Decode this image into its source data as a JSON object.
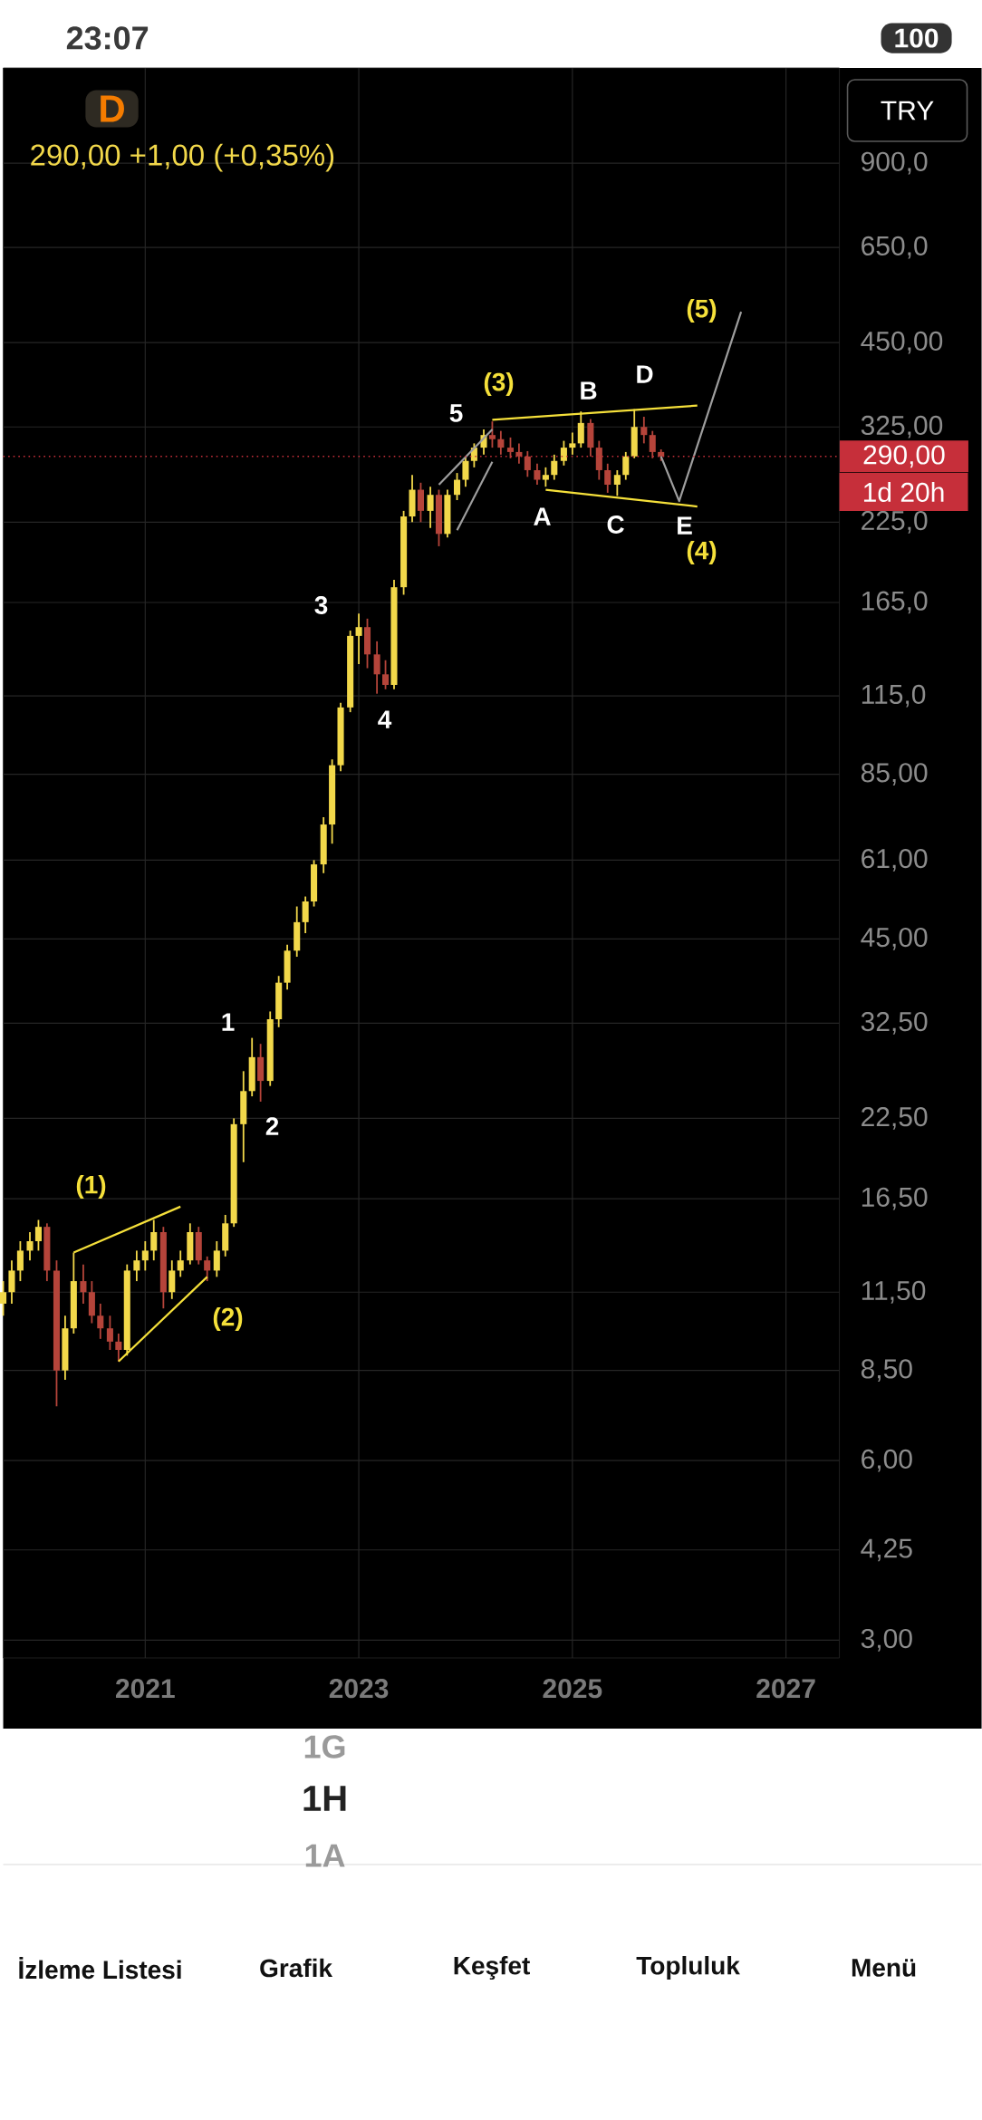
{
  "chart_data": {
    "type": "candlestick",
    "xlim": [
      "2019-09",
      "2027-07"
    ],
    "ylim": [
      2.8,
      1300
    ],
    "log": "y",
    "grid": true,
    "xticks": [
      "2021",
      "2023",
      "2025",
      "2027"
    ],
    "yticks": [
      {
        "value": 3,
        "label": "3,00"
      },
      {
        "value": 4.25,
        "label": "4,25"
      },
      {
        "value": 6,
        "label": "6,00"
      },
      {
        "value": 8.5,
        "label": "8,50"
      },
      {
        "value": 11.5,
        "label": "11,50"
      },
      {
        "value": 16.5,
        "label": "16,50"
      },
      {
        "value": 22.5,
        "label": "22,50"
      },
      {
        "value": 32.5,
        "label": "32,50"
      },
      {
        "value": 45,
        "label": "45,00"
      },
      {
        "value": 61,
        "label": "61,00"
      },
      {
        "value": 85,
        "label": "85,00"
      },
      {
        "value": 115,
        "label": "115,0"
      },
      {
        "value": 165,
        "label": "165,0"
      },
      {
        "value": 225,
        "label": "225,0"
      },
      {
        "value": 325,
        "label": "325,00"
      },
      {
        "value": 450,
        "label": "450,00"
      },
      {
        "value": 650,
        "label": "650,0"
      },
      {
        "value": 900,
        "label": "900,0"
      }
    ],
    "series": [
      {
        "x": [
          "2019-09",
          "2019-10",
          "2019-11",
          "2019-12",
          "2020-01",
          "2020-02",
          "2020-03",
          "2020-04",
          "2020-05",
          "2020-06",
          "2020-07",
          "2020-08",
          "2020-09",
          "2020-10",
          "2020-11",
          "2020-12",
          "2021-01",
          "2021-02",
          "2021-03",
          "2021-04",
          "2021-05",
          "2021-06",
          "2021-07",
          "2021-08",
          "2021-09",
          "2021-10",
          "2021-11",
          "2021-12",
          "2022-01",
          "2022-02",
          "2022-03",
          "2022-04",
          "2022-05",
          "2022-06",
          "2022-07",
          "2022-08",
          "2022-09",
          "2022-10",
          "2022-11",
          "2022-12",
          "2023-01",
          "2023-02",
          "2023-03",
          "2023-04",
          "2023-05",
          "2023-06",
          "2023-07",
          "2023-08",
          "2023-09",
          "2023-10",
          "2023-11",
          "2023-12",
          "2024-01",
          "2024-02",
          "2024-03",
          "2024-04",
          "2024-05",
          "2024-06",
          "2024-07",
          "2024-08",
          "2024-09",
          "2024-10",
          "2024-11",
          "2024-12",
          "2025-01",
          "2025-02",
          "2025-03",
          "2025-04",
          "2025-05",
          "2025-06",
          "2025-07",
          "2025-08",
          "2025-09",
          "2025-10",
          "2025-11"
        ],
        "ohlc": [
          [
            11.0,
            12.0,
            10.5,
            11.5
          ],
          [
            11.5,
            13.0,
            11.0,
            12.5
          ],
          [
            12.5,
            14.0,
            12.0,
            13.5
          ],
          [
            13.5,
            14.5,
            13.0,
            14.0
          ],
          [
            14.0,
            15.2,
            13.5,
            14.8
          ],
          [
            14.8,
            15.0,
            12.0,
            12.5
          ],
          [
            12.5,
            13.0,
            7.4,
            8.5
          ],
          [
            8.5,
            10.5,
            8.2,
            10.0
          ],
          [
            10.0,
            13.4,
            9.8,
            12.0
          ],
          [
            12.0,
            12.8,
            11.0,
            11.5
          ],
          [
            11.5,
            12.0,
            10.2,
            10.5
          ],
          [
            10.5,
            11.0,
            9.6,
            10.0
          ],
          [
            10.0,
            10.5,
            9.2,
            9.5
          ],
          [
            9.5,
            9.8,
            8.8,
            9.2
          ],
          [
            9.2,
            12.8,
            9.0,
            12.5
          ],
          [
            12.5,
            13.5,
            12.0,
            13.0
          ],
          [
            13.0,
            14.0,
            12.5,
            13.5
          ],
          [
            13.5,
            15.2,
            13.0,
            14.5
          ],
          [
            14.5,
            14.8,
            10.8,
            11.5
          ],
          [
            11.5,
            13.0,
            11.2,
            12.5
          ],
          [
            12.5,
            13.5,
            12.2,
            13.0
          ],
          [
            13.0,
            15.0,
            12.8,
            14.5
          ],
          [
            14.5,
            14.8,
            12.8,
            13.0
          ],
          [
            13.0,
            13.2,
            12.0,
            12.5
          ],
          [
            12.5,
            14.0,
            12.2,
            13.5
          ],
          [
            13.5,
            15.5,
            13.2,
            15.0
          ],
          [
            15.0,
            22.5,
            14.8,
            22.0
          ],
          [
            22.0,
            27.0,
            19.0,
            25.0
          ],
          [
            25.0,
            30.7,
            24.5,
            28.5
          ],
          [
            28.5,
            30.0,
            24.0,
            26.0
          ],
          [
            26.0,
            34.0,
            25.5,
            33.0
          ],
          [
            33.0,
            39.0,
            32.0,
            38.0
          ],
          [
            38.0,
            44.0,
            37.0,
            43.0
          ],
          [
            43.0,
            51.0,
            42.0,
            48.0
          ],
          [
            48.0,
            53.0,
            46.0,
            52.0
          ],
          [
            52.0,
            61.0,
            51.0,
            60.0
          ],
          [
            60.0,
            72.0,
            58.0,
            70.0
          ],
          [
            70.0,
            90.0,
            65.0,
            88.0
          ],
          [
            88.0,
            112.0,
            86.0,
            110.0
          ],
          [
            110.0,
            148.0,
            108.0,
            145.0
          ],
          [
            145.0,
            158.0,
            130.0,
            150.0
          ],
          [
            150.0,
            155.0,
            128.0,
            135.0
          ],
          [
            135.0,
            142.0,
            116.0,
            125.0
          ],
          [
            125.0,
            132.0,
            118.0,
            120.0
          ],
          [
            120.0,
            180.0,
            118.0,
            175.0
          ],
          [
            175.0,
            235.0,
            170.0,
            230.0
          ],
          [
            230.0,
            270.0,
            225.0,
            255.0
          ],
          [
            255.0,
            262.0,
            225.0,
            235.0
          ],
          [
            235.0,
            258.0,
            220.0,
            250.0
          ],
          [
            250.0,
            255.0,
            205.0,
            215.0
          ],
          [
            215.0,
            255.0,
            212.0,
            250.0
          ],
          [
            250.0,
            272.0,
            245.0,
            265.0
          ],
          [
            265.0,
            290.0,
            258.0,
            285.0
          ],
          [
            285.0,
            305.0,
            278.0,
            300.0
          ],
          [
            300.0,
            322.0,
            292.0,
            315.0
          ],
          [
            315.0,
            332.0,
            300.0,
            310.0
          ],
          [
            310.0,
            320.0,
            292.0,
            300.0
          ],
          [
            300.0,
            312.0,
            288.0,
            295.0
          ],
          [
            295.0,
            305.0,
            282.0,
            290.0
          ],
          [
            290.0,
            296.0,
            268.0,
            275.0
          ],
          [
            275.0,
            282.0,
            260.0,
            265.0
          ],
          [
            265.0,
            278.0,
            258.0,
            270.0
          ],
          [
            270.0,
            292.0,
            265.0,
            285.0
          ],
          [
            285.0,
            308.0,
            280.0,
            300.0
          ],
          [
            300.0,
            318.0,
            292.0,
            305.0
          ],
          [
            305.0,
            345.0,
            300.0,
            330.0
          ],
          [
            330.0,
            335.0,
            290.0,
            300.0
          ],
          [
            300.0,
            308.0,
            265.0,
            275.0
          ],
          [
            275.0,
            282.0,
            252.0,
            260.0
          ],
          [
            260.0,
            275.0,
            249.0,
            270.0
          ],
          [
            270.0,
            295.0,
            265.0,
            290.0
          ],
          [
            290.0,
            348.0,
            288.0,
            325.0
          ],
          [
            325.0,
            338.0,
            305.0,
            315.0
          ],
          [
            315.0,
            320.0,
            288.0,
            295.0
          ],
          [
            295.0,
            298.0,
            285.0,
            290.0
          ]
        ],
        "colors": [
          "#f2d84a",
          "#f2d84a",
          "#f2d84a",
          "#f2d84a",
          "#f2d84a",
          "#b5443a",
          "#b5443a",
          "#f2d84a",
          "#f2d84a",
          "#b5443a",
          "#b5443a",
          "#b5443a",
          "#b5443a",
          "#b5443a",
          "#f2d84a",
          "#f2d84a",
          "#f2d84a",
          "#f2d84a",
          "#b5443a",
          "#f2d84a",
          "#f2d84a",
          "#f2d84a",
          "#b5443a",
          "#b5443a",
          "#f2d84a",
          "#f2d84a",
          "#f2d84a",
          "#f2d84a",
          "#f2d84a",
          "#b5443a",
          "#f2d84a",
          "#f2d84a",
          "#f2d84a",
          "#f2d84a",
          "#f2d84a",
          "#f2d84a",
          "#f2d84a",
          "#f2d84a",
          "#f2d84a",
          "#f2d84a",
          "#f2d84a",
          "#b5443a",
          "#b5443a",
          "#b5443a",
          "#f2d84a",
          "#f2d84a",
          "#f2d84a",
          "#b5443a",
          "#f2d84a",
          "#b5443a",
          "#f2d84a",
          "#f2d84a",
          "#f2d84a",
          "#f2d84a",
          "#f2d84a",
          "#b5443a",
          "#b5443a",
          "#b5443a",
          "#b5443a",
          "#b5443a",
          "#b5443a",
          "#f2d84a",
          "#f2d84a",
          "#f2d84a",
          "#f2d84a",
          "#f2d84a",
          "#b5443a",
          "#b5443a",
          "#b5443a",
          "#f2d84a",
          "#f2d84a",
          "#f2d84a",
          "#b5443a",
          "#b5443a",
          "#b5443a"
        ]
      },
      {
        "type": "line",
        "color": "#f5e03a",
        "x": [
          "2020-05",
          "2021-05"
        ],
        "values": [
          13.4,
          16.0
        ]
      },
      {
        "type": "line",
        "color": "#f5e03a",
        "x": [
          "2020-10",
          "2021-08"
        ],
        "values": [
          8.8,
          12.2
        ]
      },
      {
        "type": "line",
        "color": "#9e9e9e",
        "x": [
          "2023-10",
          "2024-04"
        ],
        "values": [
          260,
          322
        ]
      },
      {
        "type": "line",
        "color": "#9e9e9e",
        "x": [
          "2023-12",
          "2024-04"
        ],
        "values": [
          218,
          284
        ]
      },
      {
        "type": "line",
        "color": "#f5e03a",
        "x": [
          "2024-04",
          "2026-03"
        ],
        "values": [
          334,
          353
        ]
      },
      {
        "type": "line",
        "color": "#f5e03a",
        "x": [
          "2024-10",
          "2026-03"
        ],
        "values": [
          255,
          239
        ]
      },
      {
        "type": "line",
        "color": "#9e9e9e",
        "x": [
          "2025-11",
          "2026-01",
          "2026-08"
        ],
        "values": [
          290,
          244,
          507
        ]
      }
    ],
    "ref_lines": [
      {
        "axis": "y",
        "value": 290,
        "label": "290,00",
        "color": "#c62f3a",
        "line_style": "dotted"
      }
    ],
    "annotations": [
      "(1)",
      "(2)",
      "(3)",
      "(4)",
      "(5)",
      "1",
      "2",
      "3",
      "4",
      "5",
      "A",
      "B",
      "C",
      "D",
      "E",
      "23:07",
      "100",
      "D",
      "290,00  +1,00 (+0,35%)",
      "TRY",
      "1d 20h",
      "1G",
      "1H",
      "1A",
      "İzleme Listesi",
      "Grafik",
      "Keşfet",
      "Topluluk",
      "Menü"
    ]
  }
}
